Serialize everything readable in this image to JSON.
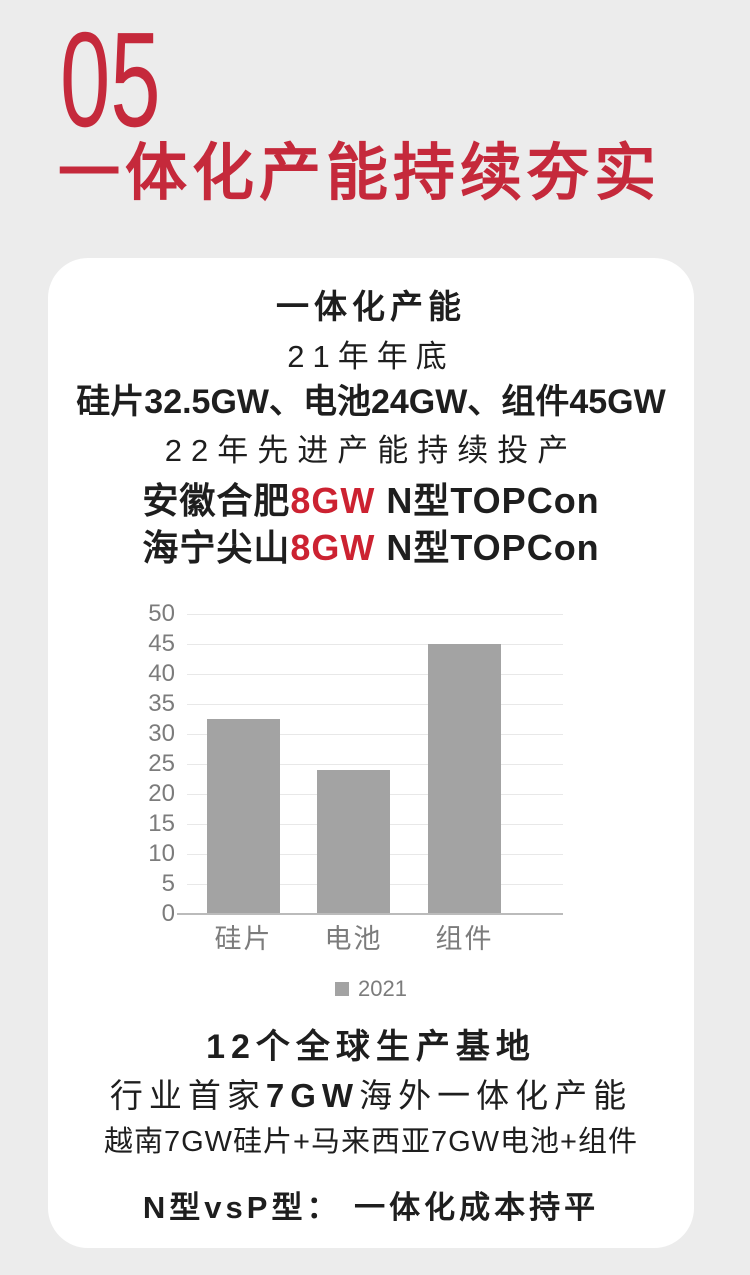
{
  "page": {
    "section_number": "05",
    "section_title": "一体化产能持续夯实"
  },
  "card": {
    "headline": "一体化产能",
    "line_year": "21年年底",
    "line_capacity": "硅片32.5GW、电池24GW、组件45GW",
    "line_2022": "22年先进产能持续投产",
    "hefei": {
      "prefix": "安徽合肥",
      "highlight": "8GW",
      "suffix": " N型TOPCon"
    },
    "haining": {
      "prefix": "海宁尖山",
      "highlight": "8GW",
      "suffix": " N型TOPCon"
    },
    "bases_line": "12个全球生产基地",
    "overseas": {
      "prefix": "行业首家",
      "highlight": "7GW",
      "suffix": "海外一体化产能"
    },
    "overseas_detail": "越南7GW硅片+马来西亚7GW电池+组件",
    "cost_line": "N型vsP型： 一体化成本持平"
  },
  "chart_data": {
    "type": "bar",
    "categories": [
      "硅片",
      "电池",
      "组件"
    ],
    "values": [
      32.5,
      24,
      45
    ],
    "series_name": "2021",
    "legend": [
      "2021"
    ],
    "title": "",
    "xlabel": "",
    "ylabel": "",
    "ylim": [
      0,
      50
    ],
    "ytick_step": 5,
    "grid": true,
    "legend_position": "bottom"
  },
  "colors": {
    "background": "#ECECEC",
    "card": "#FFFFFF",
    "heading_red": "#C5293B",
    "highlight_red": "#CC2231",
    "text": "#1E1E1E",
    "axis_text": "#7C7C7C",
    "bar": "#A3A3A3",
    "gridline": "#E8E8E8",
    "axis_line": "#BBBBBB"
  }
}
